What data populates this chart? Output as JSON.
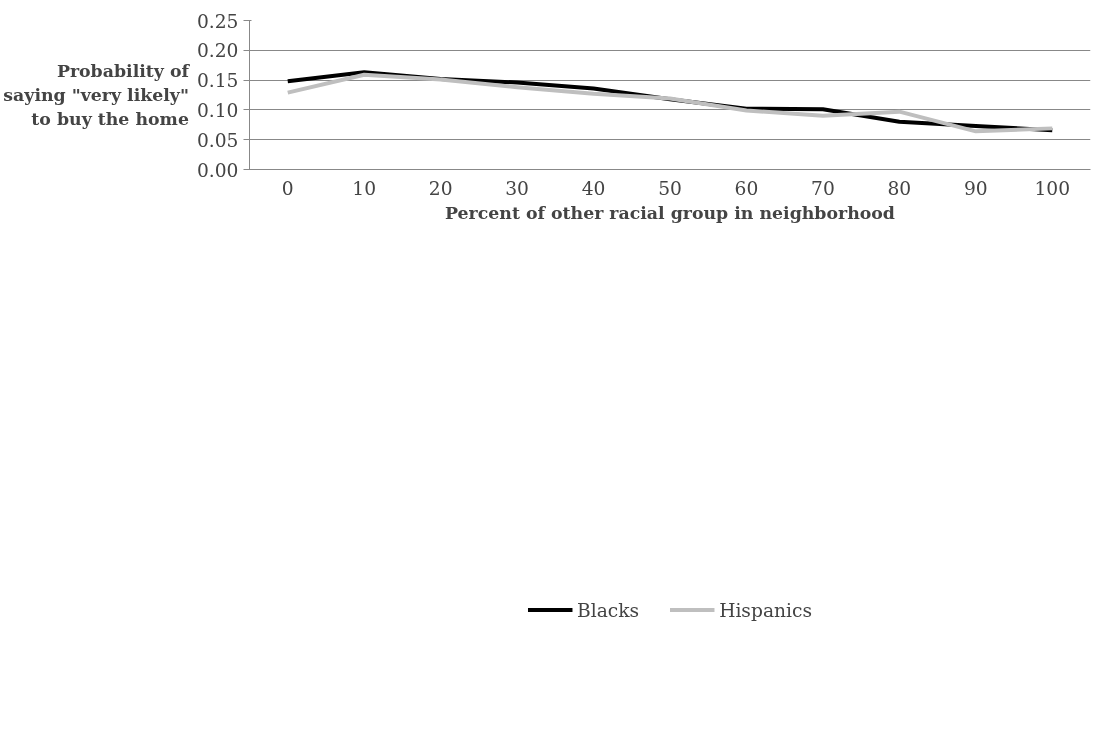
{
  "chart_data": {
    "type": "line",
    "xlabel": "Percent of other racial group in neighborhood",
    "ylabel": "Probability of saying \"very likely\" to buy the home",
    "categories": [
      "0",
      "10",
      "20",
      "30",
      "40",
      "50",
      "60",
      "70",
      "80",
      "90",
      "100"
    ],
    "series": [
      {
        "name": "Blacks",
        "color": "#000000",
        "values": [
          0.148,
          0.163,
          0.152,
          0.146,
          0.136,
          0.118,
          0.102,
          0.101,
          0.08,
          0.073,
          0.066
        ]
      },
      {
        "name": "Hispanics",
        "color": "#bfbfbf",
        "values": [
          0.129,
          0.159,
          0.151,
          0.138,
          0.127,
          0.119,
          0.099,
          0.09,
          0.097,
          0.064,
          0.069
        ]
      }
    ],
    "ylim": [
      0,
      0.25
    ],
    "yticks": [
      {
        "value": 0,
        "label": "0.00"
      },
      {
        "value": 0.05,
        "label": "0.05"
      },
      {
        "value": 0.1,
        "label": "0.10"
      },
      {
        "value": 0.15,
        "label": "0.15"
      },
      {
        "value": 0.2,
        "label": "0.20"
      },
      {
        "value": 0.25,
        "label": "0.25"
      }
    ],
    "grid": "y",
    "legend": "bottom",
    "marker": "none",
    "line_style": "solid"
  }
}
